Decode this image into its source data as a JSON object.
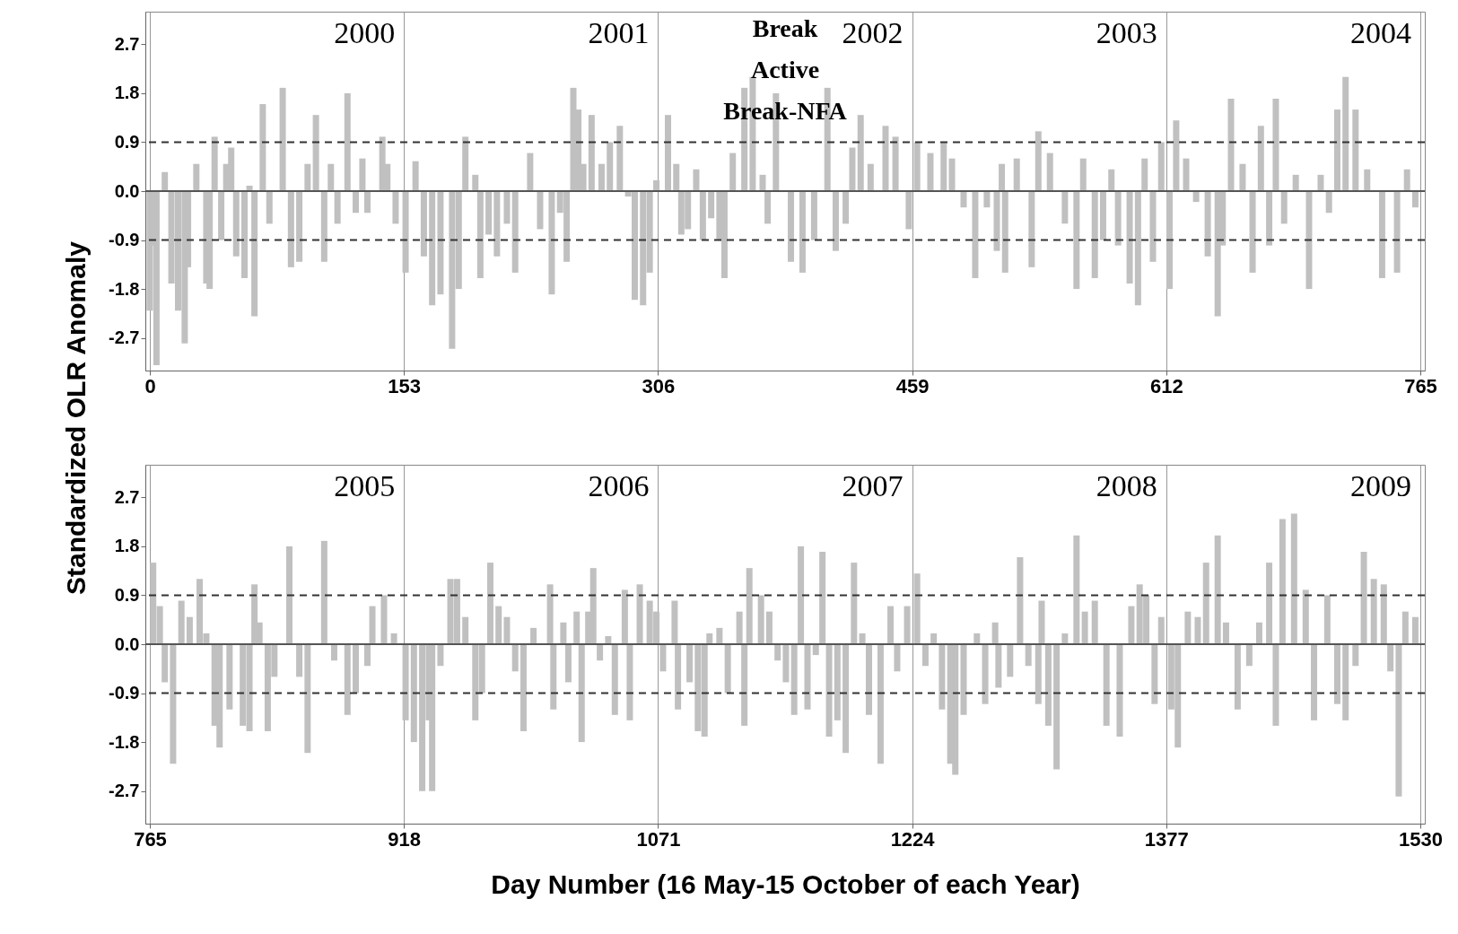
{
  "chart_data": [
    {
      "type": "bar",
      "ylabel": "Standardized OLR Anomaly",
      "color": "#c0c0c0",
      "grid": "x",
      "x": [
        0,
        2,
        4,
        9,
        13,
        17,
        21,
        23,
        28,
        34,
        36,
        39,
        43,
        46,
        49,
        52,
        57,
        60,
        63,
        68,
        72,
        80,
        85,
        90,
        95,
        100,
        105,
        109,
        113,
        119,
        124,
        128,
        131,
        140,
        143,
        148,
        154,
        160,
        165,
        170,
        175,
        182,
        186,
        190,
        196,
        199,
        204,
        209,
        215,
        220,
        229,
        235,
        242,
        247,
        251,
        255,
        258,
        261,
        266,
        272,
        277,
        283,
        288,
        292,
        297,
        301,
        305,
        312,
        317,
        320,
        324,
        329,
        333,
        338,
        343,
        346,
        351,
        358,
        363,
        369,
        372,
        377,
        386,
        393,
        400,
        408,
        413,
        419,
        423,
        428,
        434,
        443,
        449,
        457,
        462,
        470,
        478,
        483,
        490,
        497,
        504,
        510,
        513,
        515,
        522,
        531,
        535,
        542,
        551,
        558,
        562,
        569,
        574,
        579,
        583,
        590,
        595,
        599,
        604,
        609,
        614,
        618,
        624,
        630,
        637,
        643,
        646,
        651,
        658,
        664,
        669,
        674,
        678,
        683,
        690,
        698,
        705,
        710,
        715,
        720,
        726,
        733,
        742,
        751,
        757,
        762
      ],
      "values": [
        -2.2,
        -1.0,
        -3.2,
        0.35,
        -1.7,
        -2.2,
        -2.8,
        -1.4,
        0.5,
        -1.7,
        -1.8,
        1.0,
        -0.9,
        0.5,
        0.8,
        -1.2,
        -1.6,
        0.1,
        -2.3,
        1.6,
        -0.6,
        1.9,
        -1.4,
        -1.3,
        0.5,
        1.4,
        -1.3,
        0.5,
        -0.6,
        1.8,
        -0.4,
        0.6,
        -0.4,
        1.0,
        0.5,
        -0.6,
        -1.5,
        0.55,
        -1.2,
        -2.1,
        -1.9,
        -2.9,
        -1.8,
        1.0,
        0.3,
        -1.6,
        -0.8,
        -1.2,
        -0.6,
        -1.5,
        0.7,
        -0.7,
        -1.9,
        -0.4,
        -1.3,
        1.9,
        1.5,
        0.5,
        1.4,
        0.5,
        0.9,
        1.2,
        -0.1,
        -2.0,
        -2.1,
        -1.5,
        0.2,
        1.4,
        0.5,
        -0.8,
        -0.7,
        0.4,
        -0.9,
        -0.5,
        -0.9,
        -1.6,
        0.7,
        1.9,
        2.1,
        0.3,
        -0.6,
        1.8,
        -1.3,
        -1.5,
        -0.9,
        1.9,
        -1.1,
        -0.6,
        0.8,
        1.4,
        0.5,
        1.2,
        1.0,
        -0.7,
        0.9,
        0.7,
        0.9,
        0.6,
        -0.3,
        -1.6,
        -0.3,
        -1.1,
        0.5,
        -1.5,
        0.6,
        -1.4,
        1.1,
        0.7,
        -0.6,
        -1.8,
        0.6,
        -1.6,
        -0.9,
        0.4,
        -1.0,
        -1.7,
        -2.1,
        0.6,
        -1.3,
        0.9,
        -1.8,
        1.3,
        0.6,
        -0.2,
        -1.2,
        -2.3,
        -1.0,
        1.7,
        0.5,
        -1.5,
        1.2,
        -1.0,
        1.7,
        -0.6,
        0.3,
        -1.8,
        0.3,
        -0.4,
        1.5,
        2.1,
        1.5,
        0.4,
        -1.6,
        -1.5,
        0.4,
        -0.3
      ],
      "xlim": [
        0,
        765
      ],
      "xticks": [
        0,
        153,
        306,
        459,
        612,
        765
      ],
      "ylim": [
        -3.3,
        3.3
      ],
      "yticks": [
        {
          "value": -2.7,
          "label": "-2.7"
        },
        {
          "value": -1.8,
          "label": "-1.8"
        },
        {
          "value": -0.9,
          "label": "-0.9"
        },
        {
          "value": 0,
          "label": "0.0"
        },
        {
          "value": 0.9,
          "label": "0.9"
        },
        {
          "value": 1.8,
          "label": "1.8"
        },
        {
          "value": 2.7,
          "label": "2.7"
        }
      ],
      "ref_lines": [
        {
          "axis": "y",
          "value": 0.9,
          "line_style": "dashed",
          "color": "#333333"
        },
        {
          "axis": "y",
          "value": -0.9,
          "line_style": "dashed",
          "color": "#333333"
        },
        {
          "axis": "y",
          "value": 0,
          "line_style": "solid",
          "color": "#555555"
        }
      ],
      "annotations": [
        "2000",
        "2001",
        "2002",
        "2003",
        "2004",
        "Break",
        "Active",
        "Break-NFA"
      ]
    },
    {
      "type": "bar",
      "xlabel": "Day Number  (16 May-15 October of each Year)",
      "color": "#c0c0c0",
      "grid": "x",
      "x": [
        767,
        771,
        774,
        779,
        784,
        789,
        795,
        799,
        804,
        807,
        813,
        821,
        825,
        828,
        831,
        836,
        840,
        849,
        855,
        860,
        870,
        876,
        884,
        889,
        896,
        899,
        906,
        912,
        919,
        924,
        929,
        933,
        935,
        940,
        946,
        950,
        955,
        961,
        965,
        970,
        975,
        980,
        985,
        990,
        996,
        1006,
        1008,
        1014,
        1017,
        1022,
        1025,
        1029,
        1032,
        1036,
        1041,
        1045,
        1051,
        1054,
        1060,
        1066,
        1070,
        1074,
        1081,
        1083,
        1090,
        1095,
        1099,
        1102,
        1108,
        1113,
        1120,
        1123,
        1126,
        1133,
        1138,
        1143,
        1148,
        1153,
        1157,
        1161,
        1166,
        1170,
        1174,
        1179,
        1184,
        1189,
        1194,
        1198,
        1205,
        1211,
        1215,
        1221,
        1227,
        1232,
        1237,
        1242,
        1247,
        1250,
        1255,
        1263,
        1268,
        1274,
        1276,
        1283,
        1289,
        1294,
        1300,
        1302,
        1306,
        1311,
        1316,
        1323,
        1328,
        1334,
        1341,
        1349,
        1356,
        1361,
        1365,
        1370,
        1374,
        1380,
        1384,
        1390,
        1396,
        1401,
        1408,
        1413,
        1420,
        1427,
        1433,
        1439,
        1443,
        1447,
        1454,
        1461,
        1466,
        1474,
        1480,
        1485,
        1491,
        1496,
        1502,
        1508,
        1512,
        1517,
        1521,
        1527
      ],
      "values": [
        1.5,
        0.7,
        -0.7,
        -2.2,
        0.8,
        0.5,
        1.2,
        0.2,
        -1.5,
        -1.9,
        -1.2,
        -1.5,
        -1.6,
        1.1,
        0.4,
        -1.6,
        -0.6,
        1.8,
        -0.6,
        -2.0,
        1.9,
        -0.3,
        -1.3,
        -0.9,
        -0.4,
        0.7,
        0.9,
        0.2,
        -1.4,
        -1.8,
        -2.7,
        -1.4,
        -2.7,
        -0.4,
        1.2,
        1.2,
        0.5,
        -1.4,
        -0.9,
        1.5,
        0.7,
        0.5,
        -0.5,
        -1.6,
        0.3,
        1.1,
        -1.2,
        0.4,
        -0.7,
        0.6,
        -1.8,
        0.6,
        1.4,
        -0.3,
        0.15,
        -1.3,
        1.0,
        -1.4,
        1.1,
        0.8,
        0.6,
        -0.5,
        0.8,
        -1.2,
        -0.7,
        -1.6,
        -1.7,
        0.2,
        0.3,
        -0.9,
        0.6,
        -1.5,
        1.4,
        0.9,
        0.6,
        -0.3,
        -0.7,
        -1.3,
        1.8,
        -1.2,
        -0.2,
        1.7,
        -1.7,
        -1.4,
        -2.0,
        1.5,
        0.2,
        -1.3,
        -2.2,
        0.7,
        -0.5,
        0.7,
        1.3,
        -0.4,
        0.2,
        -1.2,
        -2.2,
        -2.4,
        -1.3,
        0.2,
        -1.1,
        0.4,
        -0.8,
        -0.6,
        1.6,
        -0.4,
        -1.1,
        0.8,
        -1.5,
        -2.3,
        0.2,
        2.0,
        0.6,
        0.8,
        -1.5,
        -1.7,
        0.7,
        1.1,
        0.9,
        -1.1,
        0.5,
        -1.2,
        -1.9,
        0.6,
        0.5,
        1.5,
        2.0,
        0.4,
        -1.2,
        -0.4,
        0.4,
        1.5,
        -1.5,
        2.3,
        2.4,
        1.0,
        -1.4,
        0.9,
        -1.1,
        -1.4,
        -0.4,
        1.7,
        1.2,
        1.1,
        -0.5,
        -2.8,
        0.6,
        0.5
      ],
      "xlim": [
        765,
        1530
      ],
      "xticks": [
        765,
        918,
        1071,
        1224,
        1377,
        1530
      ],
      "ylim": [
        -3.3,
        3.3
      ],
      "yticks": [
        {
          "value": -2.7,
          "label": "-2.7"
        },
        {
          "value": -1.8,
          "label": "-1.8"
        },
        {
          "value": -0.9,
          "label": "-0.9"
        },
        {
          "value": 0,
          "label": "0.0"
        },
        {
          "value": 0.9,
          "label": "0.9"
        },
        {
          "value": 1.8,
          "label": "1.8"
        },
        {
          "value": 2.7,
          "label": "2.7"
        }
      ],
      "ref_lines": [
        {
          "axis": "y",
          "value": 0.9,
          "line_style": "dashed",
          "color": "#333333"
        },
        {
          "axis": "y",
          "value": -0.9,
          "line_style": "dashed",
          "color": "#333333"
        },
        {
          "axis": "y",
          "value": 0,
          "line_style": "solid",
          "color": "#555555"
        }
      ],
      "annotations": [
        "2005",
        "2006",
        "2007",
        "2008",
        "2009"
      ]
    }
  ]
}
